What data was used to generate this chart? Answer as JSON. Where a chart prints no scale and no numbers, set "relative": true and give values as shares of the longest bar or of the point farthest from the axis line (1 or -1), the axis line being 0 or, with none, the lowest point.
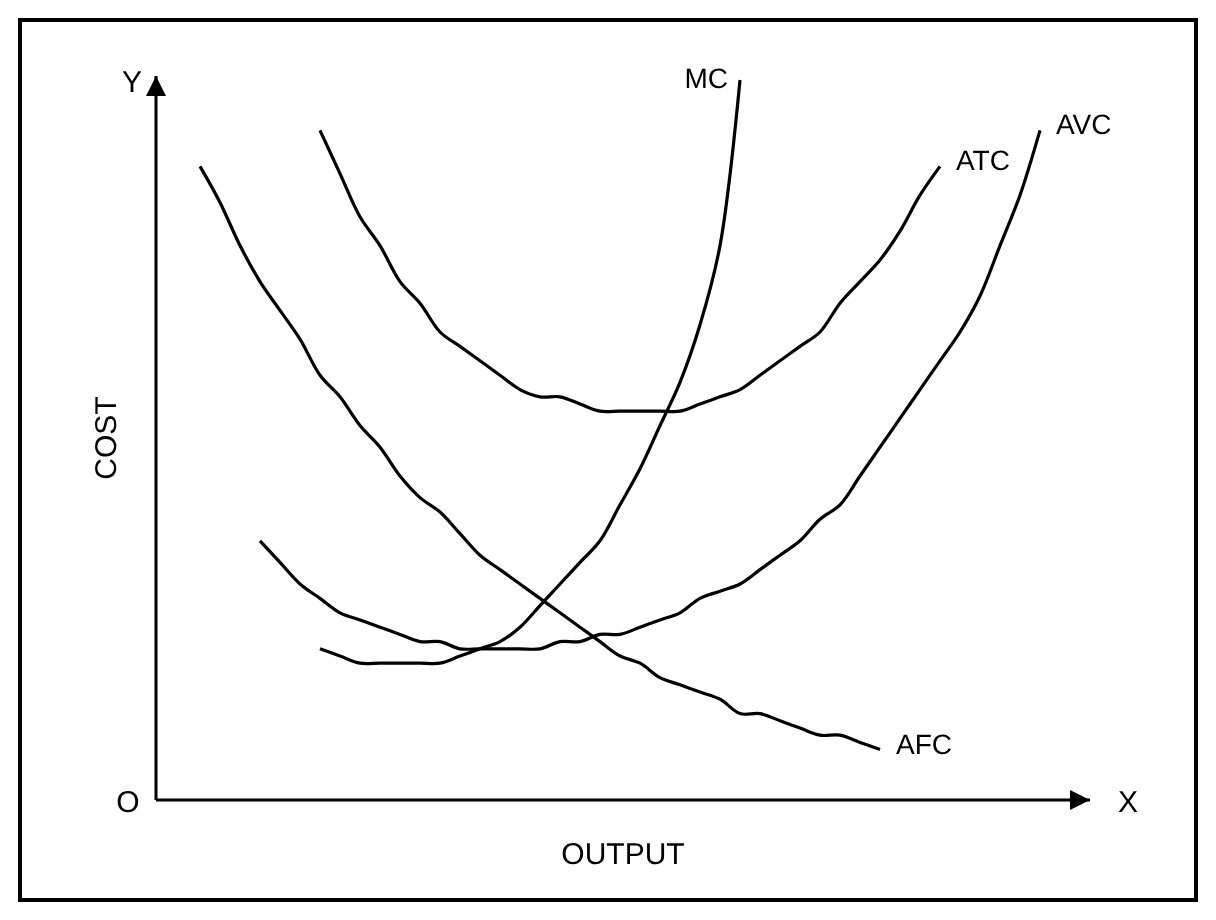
{
  "chart_data": {
    "type": "line",
    "relative": true,
    "xlabel": "OUTPUT",
    "ylabel": "COST",
    "annotations": [
      "O",
      "X",
      "Y"
    ],
    "marker": "none",
    "line_style": "solid",
    "categories": [
      null,
      null,
      null,
      null,
      null,
      null,
      null,
      null,
      null,
      null,
      null,
      null,
      null,
      null,
      null,
      null,
      null,
      null,
      null,
      null,
      null,
      null,
      null,
      null,
      null,
      null,
      null,
      null,
      null,
      null,
      null,
      null,
      null,
      null,
      null,
      null,
      null,
      null,
      null,
      null,
      null,
      null,
      null
    ],
    "series": [
      {
        "name": "MC",
        "color": "#000000",
        "values": [
          null,
          null,
          null,
          null,
          null,
          null,
          0.21,
          0.2,
          0.19,
          0.19,
          0.19,
          0.19,
          0.19,
          0.2,
          0.21,
          0.22,
          0.24,
          0.27,
          0.3,
          0.33,
          0.36,
          0.41,
          0.46,
          0.52,
          0.58,
          0.66,
          0.77,
          1,
          null,
          null,
          null,
          null,
          null,
          null,
          null,
          null,
          null,
          null,
          null,
          null,
          null,
          null,
          null
        ]
      },
      {
        "name": "ATC",
        "color": "#000000",
        "values": [
          null,
          null,
          null,
          null,
          null,
          null,
          0.93,
          0.87,
          0.81,
          0.77,
          0.72,
          0.69,
          0.65,
          0.63,
          0.61,
          0.59,
          0.57,
          0.56,
          0.56,
          0.55,
          0.54,
          0.54,
          0.54,
          0.54,
          0.54,
          0.55,
          0.56,
          0.57,
          0.59,
          0.61,
          0.63,
          0.65,
          0.69,
          0.72,
          0.75,
          0.79,
          0.84,
          0.88,
          null,
          null,
          null,
          null,
          null
        ]
      },
      {
        "name": "AVC",
        "color": "#000000",
        "values": [
          null,
          null,
          null,
          0.36,
          0.33,
          0.3,
          0.28,
          0.26,
          0.25,
          0.24,
          0.23,
          0.22,
          0.22,
          0.21,
          0.21,
          0.21,
          0.21,
          0.21,
          0.22,
          0.22,
          0.23,
          0.23,
          0.24,
          0.25,
          0.26,
          0.28,
          0.29,
          0.3,
          0.32,
          0.34,
          0.36,
          0.39,
          0.41,
          0.45,
          0.49,
          0.53,
          0.57,
          0.61,
          0.65,
          0.7,
          0.77,
          0.84,
          0.93
        ]
      },
      {
        "name": "AFC",
        "color": "#000000",
        "values": [
          0.88,
          0.83,
          0.77,
          0.72,
          0.68,
          0.64,
          0.59,
          0.56,
          0.52,
          0.49,
          0.45,
          0.42,
          0.4,
          0.37,
          0.34,
          0.32,
          0.3,
          0.28,
          0.26,
          0.24,
          0.22,
          0.2,
          0.19,
          0.17,
          0.16,
          0.15,
          0.14,
          0.12,
          0.12,
          0.11,
          0.1,
          0.09,
          0.09,
          0.08,
          0.07,
          null,
          null,
          null,
          null,
          null,
          null,
          null,
          null
        ]
      }
    ]
  }
}
